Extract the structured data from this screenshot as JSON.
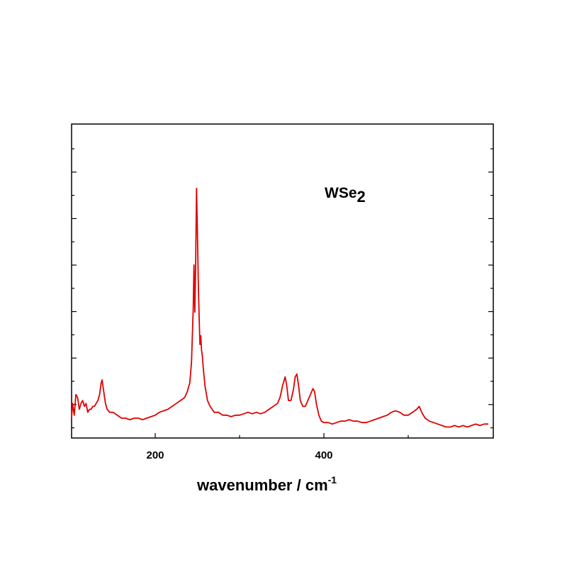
{
  "chart_data": {
    "type": "line",
    "title": "",
    "xlabel_main": "wavenumber / cm",
    "xlabel_sup": "-1",
    "ylabel": "",
    "xlim": [
      100,
      600
    ],
    "ylim": [
      0,
      100
    ],
    "x_ticks": [
      {
        "value": 200,
        "label": "200"
      },
      {
        "value": 400,
        "label": "400"
      }
    ],
    "annotation": {
      "main": "WSe",
      "sub": "2"
    },
    "series": [
      {
        "color": "#e00000",
        "points": [
          [
            100,
            5
          ],
          [
            102,
            10
          ],
          [
            104,
            6
          ],
          [
            106,
            13
          ],
          [
            108,
            12
          ],
          [
            110,
            8
          ],
          [
            112,
            10
          ],
          [
            114,
            11
          ],
          [
            116,
            9
          ],
          [
            118,
            10
          ],
          [
            120,
            7
          ],
          [
            122,
            8
          ],
          [
            124,
            8
          ],
          [
            126,
            9
          ],
          [
            128,
            9
          ],
          [
            130,
            10
          ],
          [
            132,
            11
          ],
          [
            134,
            13
          ],
          [
            136,
            17
          ],
          [
            137,
            18
          ],
          [
            139,
            14
          ],
          [
            141,
            10
          ],
          [
            143,
            8
          ],
          [
            146,
            7
          ],
          [
            150,
            7
          ],
          [
            155,
            6
          ],
          [
            160,
            5
          ],
          [
            165,
            5
          ],
          [
            170,
            4.5
          ],
          [
            175,
            5
          ],
          [
            180,
            5
          ],
          [
            185,
            4.5
          ],
          [
            190,
            5
          ],
          [
            195,
            5.5
          ],
          [
            200,
            6
          ],
          [
            205,
            7
          ],
          [
            210,
            7.5
          ],
          [
            215,
            8
          ],
          [
            220,
            9
          ],
          [
            225,
            10
          ],
          [
            230,
            11
          ],
          [
            235,
            12
          ],
          [
            238,
            14
          ],
          [
            241,
            17
          ],
          [
            243,
            24
          ],
          [
            245,
            42
          ],
          [
            246,
            57
          ],
          [
            247,
            41
          ],
          [
            248,
            58
          ],
          [
            249,
            83
          ],
          [
            250,
            69
          ],
          [
            251,
            52
          ],
          [
            252,
            40
          ],
          [
            253,
            30
          ],
          [
            254,
            33
          ],
          [
            255,
            28
          ],
          [
            256,
            26
          ],
          [
            257,
            22
          ],
          [
            259,
            16
          ],
          [
            262,
            11
          ],
          [
            265,
            9
          ],
          [
            270,
            7
          ],
          [
            275,
            7
          ],
          [
            280,
            6
          ],
          [
            285,
            6
          ],
          [
            290,
            5.5
          ],
          [
            295,
            6
          ],
          [
            300,
            6
          ],
          [
            305,
            6.5
          ],
          [
            310,
            7
          ],
          [
            315,
            6.5
          ],
          [
            320,
            7
          ],
          [
            325,
            6.5
          ],
          [
            330,
            7
          ],
          [
            335,
            8
          ],
          [
            340,
            9
          ],
          [
            345,
            10
          ],
          [
            348,
            12
          ],
          [
            351,
            16
          ],
          [
            354,
            19
          ],
          [
            356,
            16
          ],
          [
            358,
            11
          ],
          [
            361,
            11
          ],
          [
            364,
            15
          ],
          [
            366,
            19
          ],
          [
            368,
            20
          ],
          [
            370,
            16
          ],
          [
            372,
            11
          ],
          [
            375,
            9
          ],
          [
            378,
            9
          ],
          [
            381,
            11
          ],
          [
            384,
            13
          ],
          [
            387,
            15
          ],
          [
            389,
            14
          ],
          [
            391,
            10
          ],
          [
            394,
            6
          ],
          [
            397,
            4
          ],
          [
            400,
            3.5
          ],
          [
            405,
            3.5
          ],
          [
            410,
            3
          ],
          [
            415,
            3.5
          ],
          [
            420,
            4
          ],
          [
            425,
            4
          ],
          [
            430,
            4.5
          ],
          [
            435,
            4
          ],
          [
            440,
            4
          ],
          [
            445,
            3.5
          ],
          [
            450,
            3.5
          ],
          [
            455,
            4
          ],
          [
            460,
            4.5
          ],
          [
            465,
            5
          ],
          [
            470,
            5.5
          ],
          [
            475,
            6
          ],
          [
            480,
            7
          ],
          [
            485,
            7.5
          ],
          [
            490,
            7
          ],
          [
            495,
            6
          ],
          [
            500,
            6
          ],
          [
            505,
            7
          ],
          [
            510,
            8
          ],
          [
            513,
            9
          ],
          [
            516,
            7
          ],
          [
            520,
            5
          ],
          [
            525,
            4
          ],
          [
            530,
            3.5
          ],
          [
            535,
            3
          ],
          [
            540,
            2.5
          ],
          [
            545,
            2
          ],
          [
            550,
            2
          ],
          [
            555,
            2.5
          ],
          [
            560,
            2
          ],
          [
            565,
            2.5
          ],
          [
            570,
            2
          ],
          [
            575,
            2.5
          ],
          [
            580,
            3
          ],
          [
            585,
            2.5
          ],
          [
            590,
            3
          ],
          [
            595,
            3
          ]
        ]
      }
    ],
    "grid": false,
    "legend": "none"
  }
}
